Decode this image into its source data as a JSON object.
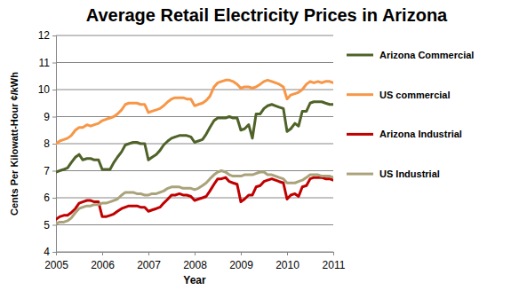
{
  "chart_data": {
    "type": "line",
    "title": "Average Retail Electricity Prices in Arizona",
    "x_label": "Year",
    "y_label": "Cents Per Kilowatt-Hour ¢/kWh",
    "x": [
      2005,
      2005.08,
      2005.17,
      2005.25,
      2005.33,
      2005.42,
      2005.5,
      2005.58,
      2005.67,
      2005.75,
      2005.83,
      2005.92,
      2006,
      2006.08,
      2006.17,
      2006.25,
      2006.33,
      2006.42,
      2006.5,
      2006.58,
      2006.67,
      2006.75,
      2006.83,
      2006.92,
      2007,
      2007.08,
      2007.17,
      2007.25,
      2007.33,
      2007.42,
      2007.5,
      2007.58,
      2007.67,
      2007.75,
      2007.83,
      2007.92,
      2008,
      2008.08,
      2008.17,
      2008.25,
      2008.33,
      2008.42,
      2008.5,
      2008.58,
      2008.67,
      2008.75,
      2008.83,
      2008.92,
      2009,
      2009.08,
      2009.17,
      2009.25,
      2009.33,
      2009.42,
      2009.5,
      2009.58,
      2009.67,
      2009.75,
      2009.83,
      2009.92,
      2010,
      2010.08,
      2010.17,
      2010.25,
      2010.33,
      2010.42,
      2010.5,
      2010.58,
      2010.67,
      2010.75,
      2010.83,
      2010.92,
      2011
    ],
    "series": [
      {
        "name": "Arizona Commercial",
        "color": "#4f6228",
        "values": [
          6.95,
          7.0,
          7.05,
          7.1,
          7.3,
          7.5,
          7.6,
          7.4,
          7.45,
          7.45,
          7.4,
          7.4,
          7.05,
          7.05,
          7.05,
          7.3,
          7.5,
          7.7,
          7.95,
          8.0,
          8.05,
          8.05,
          8.0,
          8.0,
          7.4,
          7.5,
          7.6,
          7.75,
          7.95,
          8.1,
          8.2,
          8.25,
          8.3,
          8.3,
          8.3,
          8.25,
          8.05,
          8.1,
          8.15,
          8.35,
          8.6,
          8.85,
          8.95,
          8.95,
          8.95,
          9.0,
          8.95,
          8.95,
          8.5,
          8.55,
          8.7,
          8.2,
          9.1,
          9.1,
          9.3,
          9.4,
          9.45,
          9.4,
          9.35,
          9.3,
          8.45,
          8.55,
          8.75,
          8.65,
          9.2,
          9.2,
          9.5,
          9.55,
          9.55,
          9.55,
          9.5,
          9.45,
          9.45
        ]
      },
      {
        "name": "US commercial",
        "color": "#f79646",
        "values": [
          8.0,
          8.1,
          8.15,
          8.2,
          8.3,
          8.5,
          8.6,
          8.6,
          8.7,
          8.65,
          8.7,
          8.75,
          8.85,
          8.9,
          8.95,
          9.0,
          9.1,
          9.25,
          9.45,
          9.5,
          9.5,
          9.5,
          9.45,
          9.45,
          9.15,
          9.2,
          9.25,
          9.3,
          9.4,
          9.55,
          9.65,
          9.7,
          9.7,
          9.7,
          9.65,
          9.65,
          9.4,
          9.45,
          9.5,
          9.6,
          9.75,
          10.1,
          10.25,
          10.3,
          10.35,
          10.35,
          10.3,
          10.2,
          10.05,
          10.1,
          10.1,
          10.05,
          10.1,
          10.2,
          10.3,
          10.35,
          10.3,
          10.25,
          10.2,
          10.1,
          9.65,
          9.8,
          9.85,
          9.9,
          10.0,
          10.2,
          10.3,
          10.25,
          10.3,
          10.25,
          10.3,
          10.3,
          10.25
        ]
      },
      {
        "name": "Arizona Industrial",
        "color": "#c00000",
        "values": [
          5.2,
          5.3,
          5.35,
          5.35,
          5.45,
          5.6,
          5.8,
          5.85,
          5.9,
          5.9,
          5.85,
          5.85,
          5.3,
          5.3,
          5.35,
          5.4,
          5.5,
          5.6,
          5.65,
          5.7,
          5.7,
          5.7,
          5.65,
          5.65,
          5.5,
          5.55,
          5.6,
          5.65,
          5.8,
          5.95,
          6.1,
          6.1,
          6.15,
          6.1,
          6.1,
          6.05,
          5.9,
          5.95,
          6.0,
          6.05,
          6.25,
          6.5,
          6.7,
          6.7,
          6.75,
          6.6,
          6.55,
          6.5,
          5.85,
          5.95,
          6.1,
          6.1,
          6.4,
          6.45,
          6.6,
          6.65,
          6.7,
          6.65,
          6.6,
          6.55,
          5.95,
          6.1,
          6.15,
          6.05,
          6.4,
          6.45,
          6.7,
          6.75,
          6.75,
          6.75,
          6.7,
          6.7,
          6.65
        ]
      },
      {
        "name": "US Industrial",
        "color": "#a9a27a",
        "values": [
          5.05,
          5.1,
          5.1,
          5.15,
          5.25,
          5.45,
          5.6,
          5.65,
          5.7,
          5.7,
          5.75,
          5.75,
          5.8,
          5.8,
          5.85,
          5.9,
          5.95,
          6.1,
          6.2,
          6.2,
          6.2,
          6.15,
          6.15,
          6.1,
          6.1,
          6.15,
          6.15,
          6.2,
          6.25,
          6.35,
          6.4,
          6.4,
          6.4,
          6.35,
          6.35,
          6.35,
          6.3,
          6.35,
          6.45,
          6.55,
          6.7,
          6.85,
          6.95,
          7.0,
          6.95,
          6.85,
          6.8,
          6.8,
          6.8,
          6.85,
          6.85,
          6.85,
          6.9,
          6.95,
          6.95,
          6.85,
          6.85,
          6.8,
          6.75,
          6.7,
          6.55,
          6.55,
          6.55,
          6.6,
          6.65,
          6.75,
          6.85,
          6.85,
          6.85,
          6.8,
          6.8,
          6.8,
          6.75
        ]
      }
    ],
    "xlim": [
      2005,
      2011
    ],
    "xticks": [
      2005,
      2006,
      2007,
      2008,
      2009,
      2010,
      2011
    ],
    "ylim": [
      4,
      12
    ],
    "yticks": [
      4,
      5,
      6,
      7,
      8,
      9,
      10,
      11,
      12
    ],
    "grid": true,
    "legend": "right"
  }
}
